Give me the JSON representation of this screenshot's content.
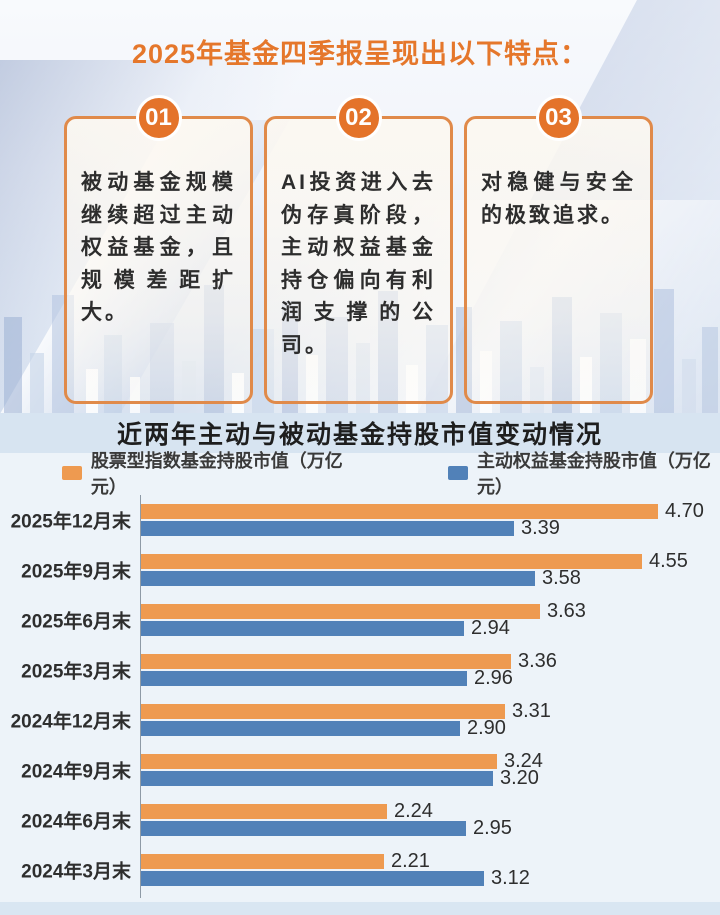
{
  "hero": {
    "title": "2025年基金四季报呈现出以下特点：",
    "points": [
      {
        "number": "01",
        "text": "被动基金规模继续超过主动权益基金，且规模差距扩大。"
      },
      {
        "number": "02",
        "text": "AI投资进入去伪存真阶段，主动权益基金持仓偏向有利润支撑的公司。"
      },
      {
        "number": "03",
        "text": "对稳健与安全的极致追求。"
      }
    ]
  },
  "chart": {
    "title": "近两年主动与被动基金持股市值变动情况",
    "legend": [
      {
        "label": "股票型指数基金持股市值（万亿元）",
        "color": "#EE9A50"
      },
      {
        "label": "主动权益基金持股市值（万亿元）",
        "color": "#5181B8"
      }
    ]
  },
  "chart_data": {
    "type": "bar",
    "orientation": "horizontal",
    "title": "近两年主动与被动基金持股市值变动情况",
    "categories": [
      "2025年12月末",
      "2025年9月末",
      "2025年6月末",
      "2025年3月末",
      "2024年12月末",
      "2024年9月末",
      "2024年6月末",
      "2024年3月末"
    ],
    "series": [
      {
        "name": "股票型指数基金持股市值（万亿元）",
        "color": "#EE9A50",
        "values": [
          4.7,
          4.55,
          3.63,
          3.36,
          3.31,
          3.24,
          2.24,
          2.21
        ]
      },
      {
        "name": "主动权益基金持股市值（万亿元）",
        "color": "#5181B8",
        "values": [
          3.39,
          3.58,
          2.94,
          2.96,
          2.9,
          3.2,
          2.95,
          3.12
        ]
      }
    ],
    "xlim": [
      0,
      5.0
    ],
    "value_labels": true,
    "grid": false,
    "legend_position": "top"
  },
  "colors": {
    "accent_orange": "#E5772B",
    "badge_orange": "#E4732A",
    "box_border": "#E08A4A",
    "bar_orange": "#EE9A50",
    "bar_blue": "#5181B8",
    "band_bg": "#D7E4F1",
    "chart_bg": "#EDF3F9"
  }
}
